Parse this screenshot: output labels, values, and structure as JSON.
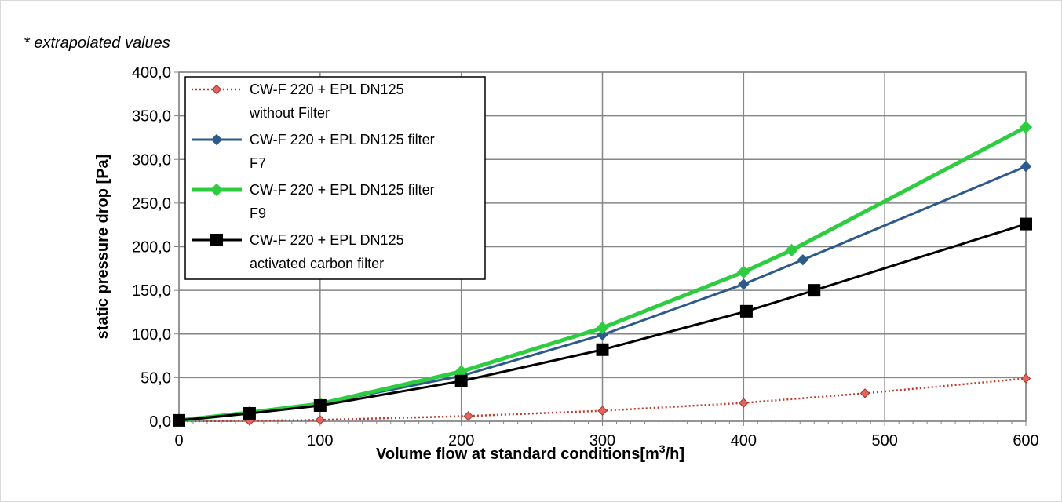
{
  "note": "* extrapolated values",
  "chart_data": {
    "type": "line",
    "title": "",
    "xlabel": "Volume flow at standard conditions[m³/h]",
    "xlabel_parts": [
      "Volume flow at standard conditions[m",
      "3",
      "/h]"
    ],
    "ylabel": "static pressure drop [Pa]",
    "xlim": [
      0,
      600
    ],
    "ylim": [
      0,
      400
    ],
    "x_ticks": [
      0,
      100,
      200,
      300,
      400,
      500,
      600
    ],
    "x_tick_labels": [
      "0",
      "100",
      "200",
      "300",
      "400",
      "500",
      "600"
    ],
    "y_ticks": [
      0,
      50,
      100,
      150,
      200,
      250,
      300,
      350,
      400
    ],
    "y_tick_labels": [
      "0,0",
      "50,0",
      "100,0",
      "150,0",
      "200,0",
      "250,0",
      "300,0",
      "350,0",
      "400,0"
    ],
    "grid": true,
    "legend_position": "top-left",
    "series": [
      {
        "name": "CW-F 220 + EPL DN125 without Filter",
        "legend_lines": [
          "CW-F 220 + EPL DN125",
          "without Filter"
        ],
        "color": "#c0392b",
        "marker": "diamond",
        "marker_fill": "#e06666",
        "line_style": "dotted",
        "points": [
          [
            0,
            0
          ],
          [
            50,
            0.5
          ],
          [
            100,
            1.5
          ],
          [
            205,
            6
          ],
          [
            300,
            12
          ],
          [
            400,
            21
          ],
          [
            486,
            32
          ],
          [
            600,
            49
          ]
        ]
      },
      {
        "name": "CW-F 220 + EPL DN125 filter F7",
        "legend_lines": [
          "CW-F 220 + EPL DN125 filter",
          "F7"
        ],
        "color": "#2e5a8a",
        "marker": "diamond",
        "marker_fill": "#2e5a8a",
        "line_style": "solid",
        "points": [
          [
            0,
            1
          ],
          [
            50,
            10
          ],
          [
            100,
            20
          ],
          [
            200,
            52
          ],
          [
            300,
            99
          ],
          [
            400,
            157
          ],
          [
            442,
            185
          ],
          [
            600,
            292
          ]
        ]
      },
      {
        "name": "CW-F 220 + EPL DN125 filter F9",
        "legend_lines": [
          "CW-F 220 + EPL DN125 filter",
          "F9"
        ],
        "color": "#2ecc40",
        "marker": "diamond",
        "marker_fill": "#2ecc40",
        "line_style": "thick",
        "points": [
          [
            0,
            1
          ],
          [
            50,
            10
          ],
          [
            100,
            20
          ],
          [
            200,
            57
          ],
          [
            300,
            107
          ],
          [
            400,
            171
          ],
          [
            434,
            196
          ],
          [
            600,
            337
          ]
        ]
      },
      {
        "name": "CW-F 220 + EPL DN125 activated carbon filter",
        "legend_lines": [
          "CW-F 220 + EPL DN125",
          "activated carbon filter"
        ],
        "color": "#000000",
        "marker": "square",
        "marker_fill": "#000000",
        "line_style": "solid",
        "points": [
          [
            0,
            1
          ],
          [
            50,
            9
          ],
          [
            100,
            18
          ],
          [
            200,
            46
          ],
          [
            300,
            82
          ],
          [
            402,
            126
          ],
          [
            450,
            150
          ],
          [
            600,
            226
          ]
        ]
      }
    ]
  }
}
